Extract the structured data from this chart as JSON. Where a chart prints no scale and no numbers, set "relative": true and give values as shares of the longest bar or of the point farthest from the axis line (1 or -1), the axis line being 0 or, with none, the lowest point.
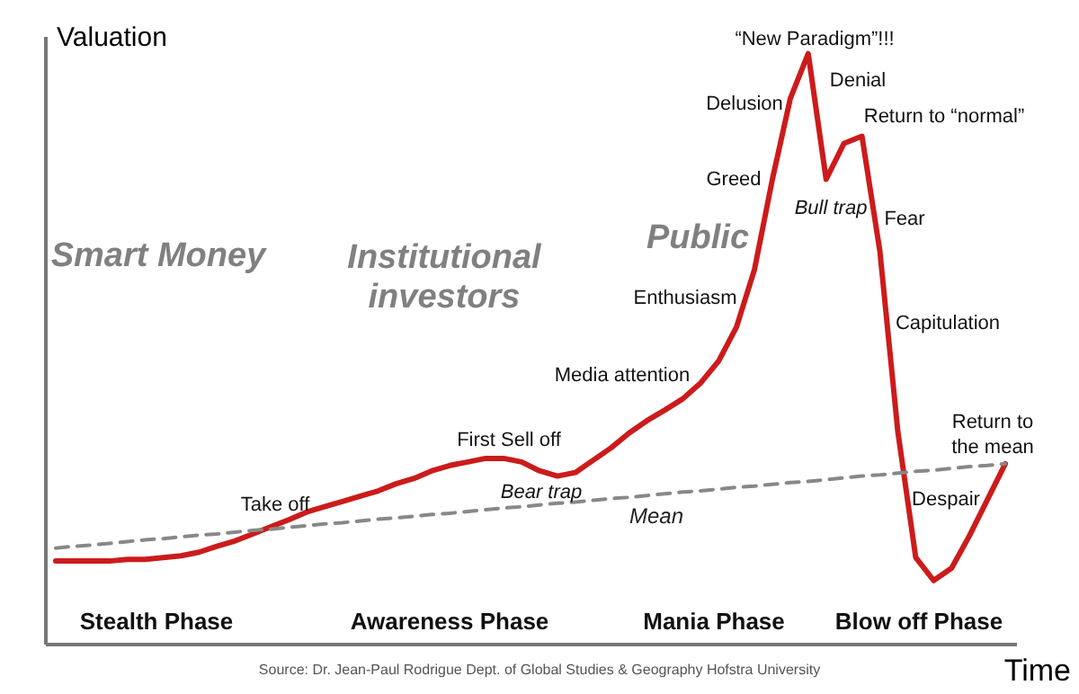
{
  "chart_data": {
    "type": "line",
    "relative": true,
    "xlabel": "Time",
    "ylabel": "Valuation",
    "grid": false,
    "marker": "none",
    "tick_labels": false,
    "categories": [
      null,
      null,
      null,
      null,
      null,
      null,
      null,
      null,
      null,
      null,
      null,
      null,
      null,
      null,
      null,
      null,
      null,
      null,
      null,
      null,
      null,
      null,
      null,
      null,
      null,
      null,
      null,
      null,
      null,
      null,
      null,
      null,
      null,
      null,
      null,
      null,
      null,
      null,
      null,
      null,
      null,
      null,
      null,
      null,
      null,
      null,
      null,
      null,
      null,
      null,
      null,
      null,
      null,
      null
    ],
    "series": [
      {
        "color": "#cc1b1b",
        "line_style": "solid",
        "values": [
          0.14,
          0.14,
          0.14,
          0.14,
          0.143,
          0.143,
          0.146,
          0.149,
          0.155,
          0.165,
          0.174,
          0.186,
          0.198,
          0.21,
          0.223,
          0.232,
          0.241,
          0.25,
          0.259,
          0.271,
          0.28,
          0.293,
          0.302,
          0.308,
          0.314,
          0.314,
          0.308,
          0.293,
          0.284,
          0.29,
          0.311,
          0.332,
          0.357,
          0.378,
          0.396,
          0.415,
          0.442,
          0.479,
          0.537,
          0.634,
          0.787,
          0.924,
          1.0,
          0.787,
          0.848,
          0.86,
          0.665,
          0.36,
          0.146,
          0.107,
          0.128,
          0.183,
          0.244,
          0.305
        ]
      },
      {
        "name": "Mean",
        "color": "#888888",
        "line_style": "dashed",
        "values": [
          0.162,
          0.165,
          0.167,
          0.17,
          0.173,
          0.176,
          0.178,
          0.181,
          0.184,
          0.186,
          0.189,
          0.192,
          0.194,
          0.197,
          0.2,
          0.203,
          0.205,
          0.208,
          0.211,
          0.213,
          0.216,
          0.219,
          0.221,
          0.224,
          0.227,
          0.23,
          0.232,
          0.235,
          0.238,
          0.24,
          0.243,
          0.246,
          0.248,
          0.251,
          0.254,
          0.257,
          0.259,
          0.262,
          0.265,
          0.267,
          0.27,
          0.273,
          0.275,
          0.278,
          0.281,
          0.284,
          0.286,
          0.289,
          0.292,
          0.294,
          0.297,
          0.3,
          0.302,
          0.305
        ]
      }
    ],
    "annotations": [
      "Smart Money",
      "Institutional\ninvestors",
      "Public",
      "Stealth Phase",
      "Awareness Phase",
      "Mania Phase",
      "Blow off Phase",
      "Take off",
      "First Sell off",
      "Bear trap",
      "Media attention",
      "Enthusiasm",
      "Greed",
      "Delusion",
      "“New Paradigm”!!!",
      "Denial",
      "Return to “normal”",
      "Bull trap",
      "Fear",
      "Capitulation",
      "Return to\nthe mean",
      "Despair",
      "Source: Dr. Jean-Paul Rodrigue Dept. of Global Studies & Geography Hofstra University"
    ]
  }
}
